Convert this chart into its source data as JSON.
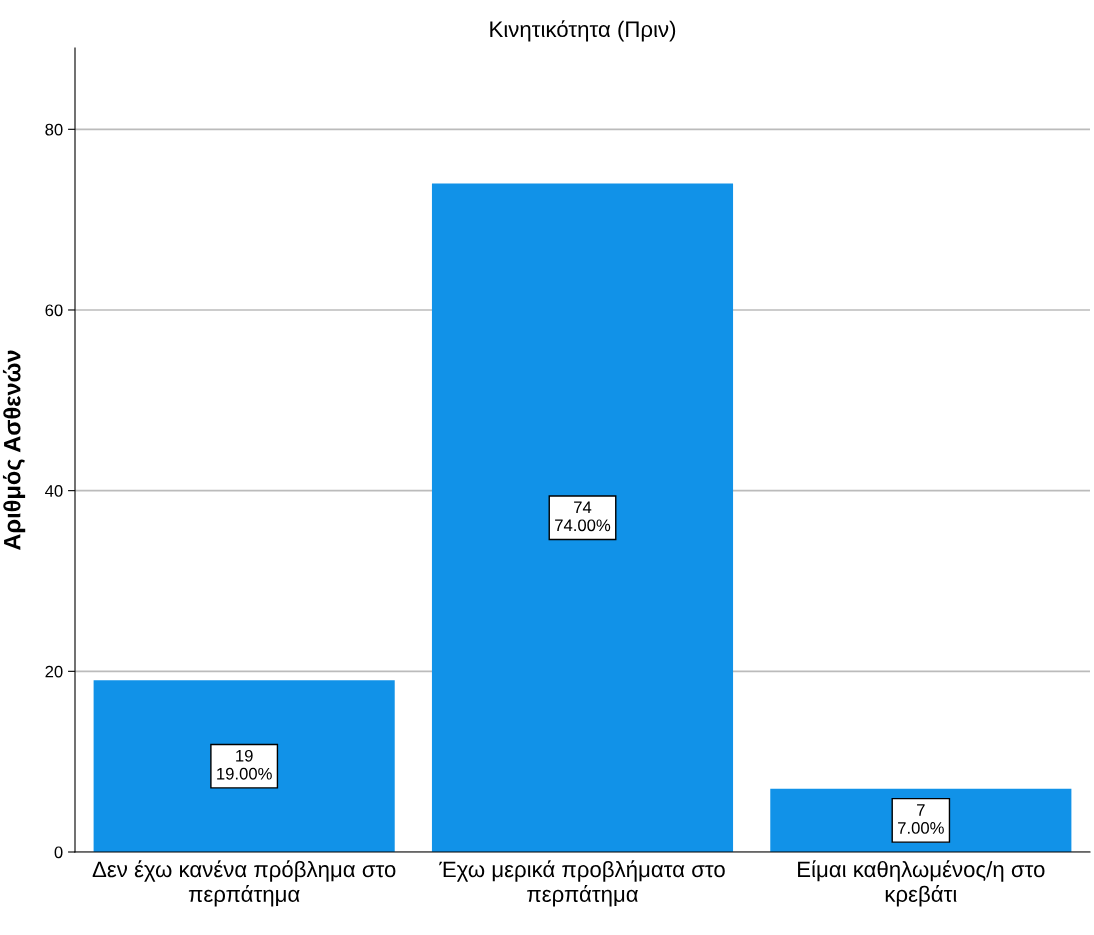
{
  "chart_data": {
    "type": "bar",
    "title": "Κινητικότητα (Πριν)",
    "ylabel": "Αριθμός Ασθενών",
    "categories": [
      "Δεν έχω κανένα πρόβλημα στο περπάτημα",
      "Έχω μερικά προβλήματα στο περπάτημα",
      "Είμαι καθηλωμένος/η στο κρεβάτι"
    ],
    "values": [
      19,
      74,
      7
    ],
    "value_labels": [
      "19\n19.00%",
      "74\n74.00%",
      "7\n7.00%"
    ],
    "color": "#1192e8",
    "ylim": [
      0,
      89
    ],
    "yticks": [
      0,
      20,
      40,
      60,
      80
    ],
    "grid": "y"
  }
}
